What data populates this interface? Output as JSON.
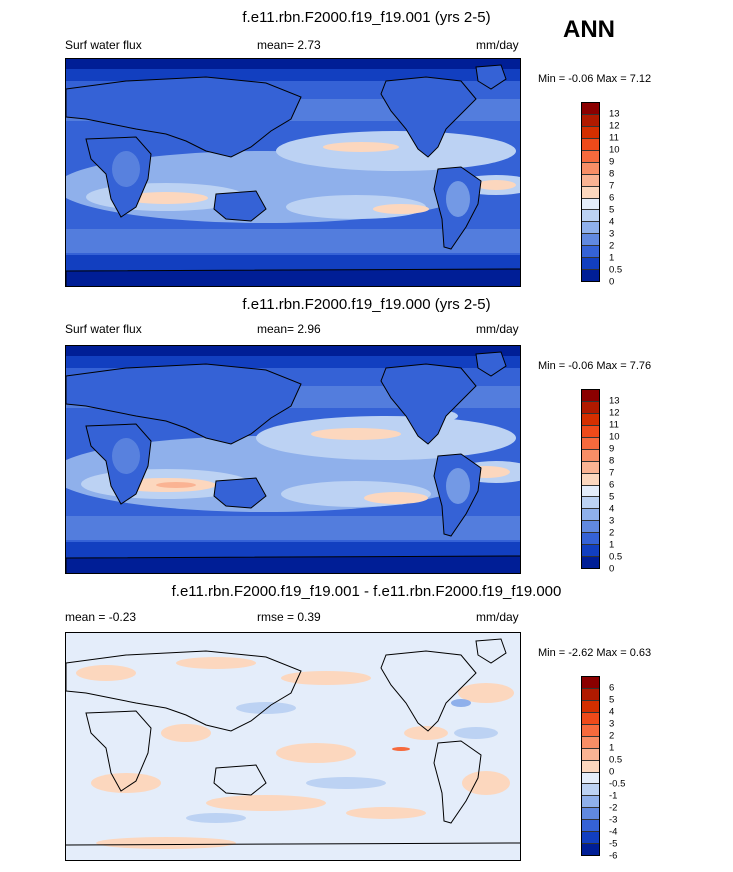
{
  "season": "ANN",
  "panels": [
    {
      "title": "f.e11.rbn.F2000.f19_f19.001 (yrs 2-5)",
      "left_label": "Surf water flux",
      "center_label": "mean=  2.73",
      "units": "mm/day",
      "minmax": "Min =  -0.06 Max =  7.12",
      "colorbar_labels": [
        "13",
        "12",
        "11",
        "10",
        "9",
        "8",
        "7",
        "6",
        "5",
        "4",
        "3",
        "2",
        "1",
        "0.5",
        "0"
      ],
      "colorbar_colors": [
        "#8b0000",
        "#b01a00",
        "#d42f00",
        "#ee4a1a",
        "#f66a3d",
        "#f88e66",
        "#fab393",
        "#fcd7be",
        "#e4edfa",
        "#bcd2f3",
        "#8fb0eb",
        "#6189e0",
        "#3562d6",
        "#123fc0",
        "#001e96"
      ]
    },
    {
      "title": "f.e11.rbn.F2000.f19_f19.000 (yrs 2-5)",
      "left_label": "Surf water flux",
      "center_label": "mean=  2.96",
      "units": "mm/day",
      "minmax": "Min =  -0.06 Max =  7.76",
      "colorbar_labels": [
        "13",
        "12",
        "11",
        "10",
        "9",
        "8",
        "7",
        "6",
        "5",
        "4",
        "3",
        "2",
        "1",
        "0.5",
        "0"
      ],
      "colorbar_colors": [
        "#8b0000",
        "#b01a00",
        "#d42f00",
        "#ee4a1a",
        "#f66a3d",
        "#f88e66",
        "#fab393",
        "#fcd7be",
        "#e4edfa",
        "#bcd2f3",
        "#8fb0eb",
        "#6189e0",
        "#3562d6",
        "#123fc0",
        "#001e96"
      ]
    },
    {
      "title": "f.e11.rbn.F2000.f19_f19.001 - f.e11.rbn.F2000.f19_f19.000",
      "left_label": "mean =  -0.23",
      "center_label": "rmse =   0.39",
      "units": "mm/day",
      "minmax": "Min =  -2.62 Max =   0.63",
      "colorbar_labels": [
        "6",
        "5",
        "4",
        "3",
        "2",
        "1",
        "0.5",
        "0",
        "-0.5",
        "-1",
        "-2",
        "-3",
        "-4",
        "-5",
        "-6"
      ],
      "colorbar_colors": [
        "#8b0000",
        "#b01a00",
        "#d42f00",
        "#ee4a1a",
        "#f66a3d",
        "#f88e66",
        "#fab393",
        "#fcd7be",
        "#e4edfa",
        "#bcd2f3",
        "#8fb0eb",
        "#6189e0",
        "#3562d6",
        "#123fc0",
        "#001e96"
      ]
    }
  ]
}
